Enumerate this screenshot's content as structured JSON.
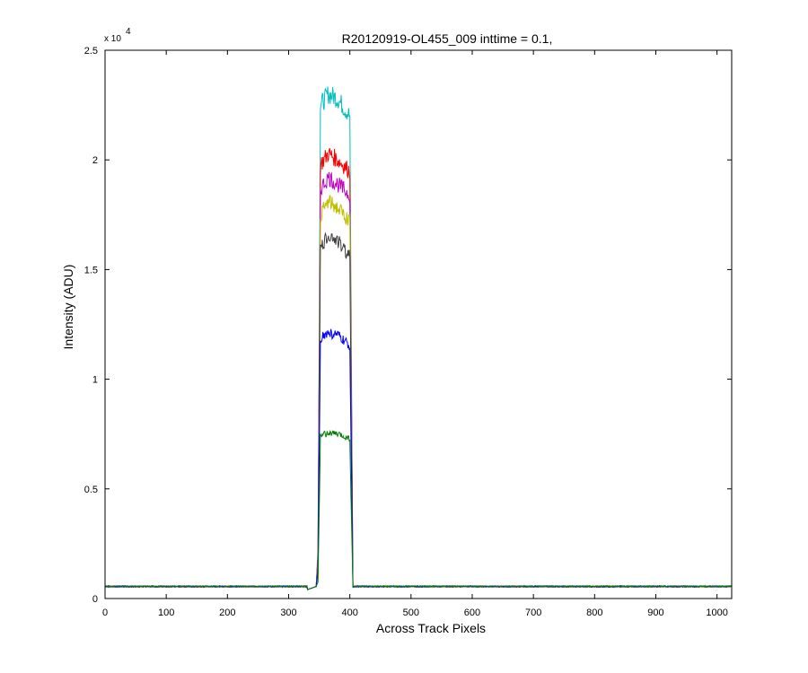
{
  "chart_data": {
    "type": "line",
    "title": "R20120919-OL455_009 inttime = 0.1,",
    "xlabel": "Across Track Pixels",
    "ylabel": "Intensity (ADU)",
    "y_multiplier_label": {
      "base": "x 10",
      "exponent": "4"
    },
    "xlim": [
      0,
      1024
    ],
    "ylim": [
      0,
      25000
    ],
    "xticks": [
      0,
      100,
      200,
      300,
      400,
      500,
      600,
      700,
      800,
      900,
      1000
    ],
    "xtick_labels": [
      "0",
      "100",
      "200",
      "300",
      "400",
      "500",
      "600",
      "700",
      "800",
      "900",
      "1000"
    ],
    "yticks": [
      0,
      5000,
      10000,
      15000,
      20000,
      25000
    ],
    "ytick_labels": [
      "0",
      "0.5",
      "1",
      "1.5",
      "2",
      "2.5"
    ],
    "baseline": 550,
    "plateau_start": 348,
    "plateau_end": 403,
    "grid": false,
    "legend": "none",
    "series": [
      {
        "color": "#00BFBF",
        "values": [
          0,
          400,
          550,
          2250,
          22500,
          23000,
          22800,
          22000,
          550,
          560,
          550
        ]
      },
      {
        "color": "#FF0000",
        "values": [
          0,
          400,
          550,
          1950,
          19800,
          20300,
          20000,
          19500,
          550,
          560,
          550
        ]
      },
      {
        "color": "#BF00BF",
        "values": [
          0,
          400,
          550,
          1800,
          18700,
          19200,
          18900,
          18400,
          550,
          560,
          550
        ]
      },
      {
        "color": "#BFBF00",
        "values": [
          0,
          400,
          550,
          1700,
          17500,
          18100,
          17800,
          17200,
          550,
          560,
          550
        ]
      },
      {
        "color": "#404040",
        "values": [
          0,
          400,
          550,
          1550,
          15900,
          16600,
          16300,
          15600,
          550,
          560,
          550
        ]
      },
      {
        "color": "#0000FF",
        "values": [
          0,
          400,
          550,
          1150,
          11900,
          12100,
          12000,
          11500,
          550,
          560,
          550
        ]
      },
      {
        "color": "#008000",
        "values": [
          0,
          400,
          550,
          750,
          7400,
          7550,
          7500,
          7300,
          550,
          560,
          550
        ]
      }
    ],
    "x": [
      0,
      330,
      345,
      348,
      352,
      365,
      380,
      400,
      405,
      600,
      1024
    ]
  }
}
